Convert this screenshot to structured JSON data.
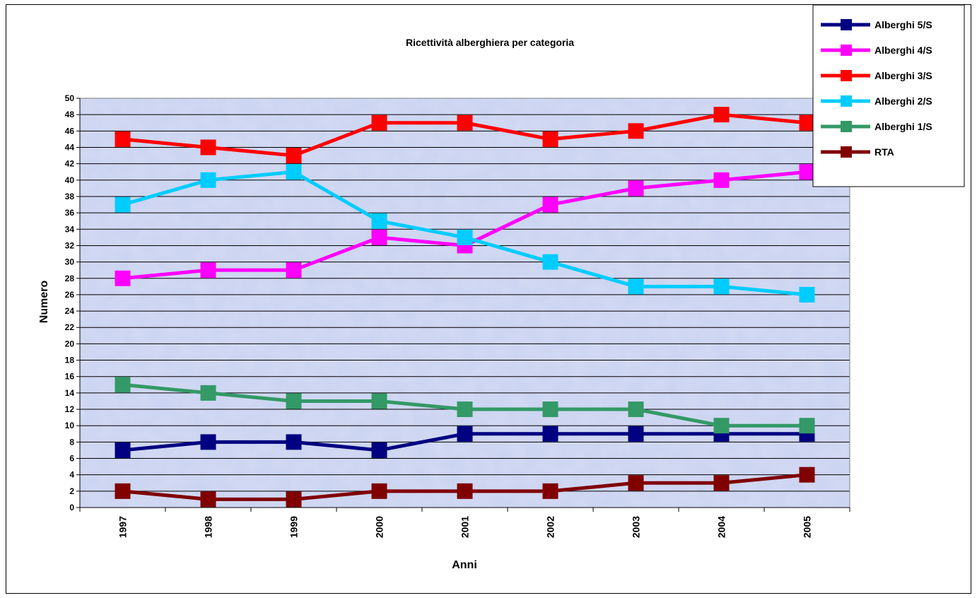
{
  "chart_data": {
    "type": "line",
    "title": "Ricettività alberghiera per categoria",
    "xlabel": "Anni",
    "ylabel": "Numero",
    "categories": [
      "1997",
      "1998",
      "1999",
      "2000",
      "2001",
      "2002",
      "2003",
      "2004",
      "2005"
    ],
    "ylim": [
      0,
      50
    ],
    "ytick_step": 2,
    "grid": true,
    "legend_position": "top-right",
    "series": [
      {
        "name": "Alberghi 5/S",
        "color": "#000080",
        "values": [
          7,
          8,
          8,
          7,
          9,
          9,
          9,
          9,
          9
        ]
      },
      {
        "name": "Alberghi 4/S",
        "color": "#FF00FF",
        "values": [
          28,
          29,
          29,
          33,
          32,
          37,
          39,
          40,
          41
        ]
      },
      {
        "name": "Alberghi 3/S",
        "color": "#FF0000",
        "values": [
          45,
          44,
          43,
          47,
          47,
          45,
          46,
          48,
          47
        ]
      },
      {
        "name": "Alberghi 2/S",
        "color": "#00CCFF",
        "values": [
          37,
          40,
          41,
          35,
          33,
          30,
          27,
          27,
          26
        ]
      },
      {
        "name": "Alberghi 1/S",
        "color": "#339966",
        "values": [
          15,
          14,
          13,
          13,
          12,
          12,
          12,
          10,
          10
        ]
      },
      {
        "name": "RTA",
        "color": "#800000",
        "values": [
          2,
          1,
          1,
          2,
          2,
          2,
          3,
          3,
          4
        ]
      }
    ]
  }
}
